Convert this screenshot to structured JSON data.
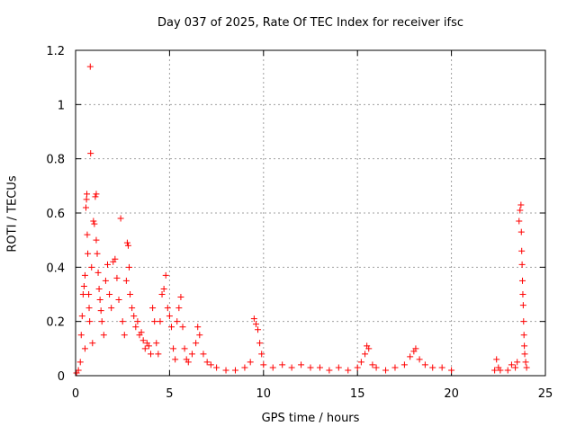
{
  "chart_data": {
    "type": "scatter",
    "title": "Day 037 of 2025, Rate Of TEC Index for receiver ifsc",
    "xlabel": "GPS time / hours",
    "ylabel": "ROTI / TECUs",
    "xlim": [
      0,
      25
    ],
    "ylim": [
      0,
      1.2
    ],
    "xticks": [
      "0",
      "5",
      "10",
      "15",
      "20",
      "25"
    ],
    "yticks": [
      "0",
      "0.2",
      "0.4",
      "0.6",
      "0.8",
      "1",
      "1.2"
    ],
    "grid": true,
    "legend": "none",
    "marker": "plus",
    "color": "#ff0000",
    "series": [
      {
        "points": [
          [
            0.05,
            0.01
          ],
          [
            0.15,
            0.02
          ],
          [
            0.25,
            0.05
          ],
          [
            0.3,
            0.15
          ],
          [
            0.35,
            0.22
          ],
          [
            0.4,
            0.3
          ],
          [
            0.45,
            0.33
          ],
          [
            0.5,
            0.1
          ],
          [
            0.5,
            0.37
          ],
          [
            0.55,
            0.62
          ],
          [
            0.58,
            0.65
          ],
          [
            0.6,
            0.67
          ],
          [
            0.62,
            0.52
          ],
          [
            0.65,
            0.45
          ],
          [
            0.7,
            0.3
          ],
          [
            0.72,
            0.25
          ],
          [
            0.75,
            0.2
          ],
          [
            0.8,
            0.82
          ],
          [
            0.78,
            1.14
          ],
          [
            0.85,
            0.4
          ],
          [
            0.9,
            0.12
          ],
          [
            0.95,
            0.57
          ],
          [
            1.0,
            0.56
          ],
          [
            1.05,
            0.66
          ],
          [
            1.1,
            0.67
          ],
          [
            1.1,
            0.5
          ],
          [
            1.15,
            0.45
          ],
          [
            1.2,
            0.38
          ],
          [
            1.25,
            0.32
          ],
          [
            1.3,
            0.28
          ],
          [
            1.35,
            0.24
          ],
          [
            1.4,
            0.2
          ],
          [
            1.5,
            0.15
          ],
          [
            1.6,
            0.35
          ],
          [
            1.7,
            0.41
          ],
          [
            1.8,
            0.3
          ],
          [
            1.9,
            0.25
          ],
          [
            2.0,
            0.42
          ],
          [
            2.1,
            0.43
          ],
          [
            2.2,
            0.36
          ],
          [
            2.3,
            0.28
          ],
          [
            2.4,
            0.58
          ],
          [
            2.5,
            0.2
          ],
          [
            2.6,
            0.15
          ],
          [
            2.7,
            0.35
          ],
          [
            2.75,
            0.49
          ],
          [
            2.8,
            0.48
          ],
          [
            2.85,
            0.4
          ],
          [
            2.9,
            0.3
          ],
          [
            3.0,
            0.25
          ],
          [
            3.1,
            0.22
          ],
          [
            3.2,
            0.18
          ],
          [
            3.3,
            0.2
          ],
          [
            3.4,
            0.15
          ],
          [
            3.5,
            0.16
          ],
          [
            3.6,
            0.13
          ],
          [
            3.7,
            0.1
          ],
          [
            3.8,
            0.12
          ],
          [
            3.9,
            0.11
          ],
          [
            4.0,
            0.08
          ],
          [
            4.1,
            0.25
          ],
          [
            4.2,
            0.2
          ],
          [
            4.3,
            0.12
          ],
          [
            4.4,
            0.08
          ],
          [
            4.5,
            0.2
          ],
          [
            4.6,
            0.3
          ],
          [
            4.7,
            0.32
          ],
          [
            4.8,
            0.37
          ],
          [
            4.9,
            0.25
          ],
          [
            5.0,
            0.22
          ],
          [
            5.1,
            0.18
          ],
          [
            5.2,
            0.1
          ],
          [
            5.3,
            0.06
          ],
          [
            5.4,
            0.2
          ],
          [
            5.5,
            0.25
          ],
          [
            5.6,
            0.29
          ],
          [
            5.7,
            0.18
          ],
          [
            5.8,
            0.1
          ],
          [
            5.9,
            0.06
          ],
          [
            6.0,
            0.05
          ],
          [
            6.2,
            0.08
          ],
          [
            6.4,
            0.12
          ],
          [
            6.5,
            0.18
          ],
          [
            6.6,
            0.15
          ],
          [
            6.8,
            0.08
          ],
          [
            7.0,
            0.05
          ],
          [
            7.2,
            0.04
          ],
          [
            7.5,
            0.03
          ],
          [
            8.0,
            0.02
          ],
          [
            8.5,
            0.02
          ],
          [
            9.0,
            0.03
          ],
          [
            9.3,
            0.05
          ],
          [
            9.5,
            0.21
          ],
          [
            9.6,
            0.19
          ],
          [
            9.7,
            0.17
          ],
          [
            9.8,
            0.12
          ],
          [
            9.9,
            0.08
          ],
          [
            10.0,
            0.04
          ],
          [
            10.5,
            0.03
          ],
          [
            11.0,
            0.04
          ],
          [
            11.5,
            0.03
          ],
          [
            12.0,
            0.04
          ],
          [
            12.5,
            0.03
          ],
          [
            13.0,
            0.03
          ],
          [
            13.5,
            0.02
          ],
          [
            14.0,
            0.03
          ],
          [
            14.5,
            0.02
          ],
          [
            15.0,
            0.03
          ],
          [
            15.2,
            0.05
          ],
          [
            15.4,
            0.08
          ],
          [
            15.5,
            0.11
          ],
          [
            15.6,
            0.1
          ],
          [
            15.8,
            0.04
          ],
          [
            16.0,
            0.03
          ],
          [
            16.5,
            0.02
          ],
          [
            17.0,
            0.03
          ],
          [
            17.5,
            0.04
          ],
          [
            17.8,
            0.07
          ],
          [
            18.0,
            0.09
          ],
          [
            18.1,
            0.1
          ],
          [
            18.3,
            0.06
          ],
          [
            18.6,
            0.04
          ],
          [
            19.0,
            0.03
          ],
          [
            19.5,
            0.03
          ],
          [
            20.0,
            0.02
          ],
          [
            22.3,
            0.02
          ],
          [
            22.4,
            0.06
          ],
          [
            22.5,
            0.03
          ],
          [
            22.6,
            0.02
          ],
          [
            23.0,
            0.02
          ],
          [
            23.2,
            0.04
          ],
          [
            23.4,
            0.03
          ],
          [
            23.5,
            0.05
          ],
          [
            23.6,
            0.57
          ],
          [
            23.65,
            0.61
          ],
          [
            23.7,
            0.63
          ],
          [
            23.72,
            0.53
          ],
          [
            23.74,
            0.46
          ],
          [
            23.76,
            0.41
          ],
          [
            23.78,
            0.35
          ],
          [
            23.8,
            0.3
          ],
          [
            23.82,
            0.26
          ],
          [
            23.84,
            0.2
          ],
          [
            23.86,
            0.15
          ],
          [
            23.88,
            0.11
          ],
          [
            23.9,
            0.08
          ],
          [
            23.95,
            0.05
          ],
          [
            24.0,
            0.03
          ]
        ]
      }
    ]
  }
}
